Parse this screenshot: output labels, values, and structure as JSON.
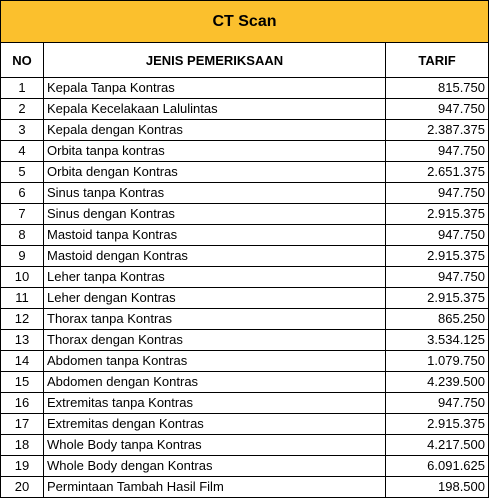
{
  "title": "CT Scan",
  "headers": {
    "no": "NO",
    "name": "JENIS  PEMERIKSAAN",
    "price": "TARIF"
  },
  "rows": [
    {
      "no": "1",
      "name": "Kepala Tanpa Kontras",
      "price": "815.750"
    },
    {
      "no": "2",
      "name": "Kepala Kecelakaan Lalulintas",
      "price": "947.750"
    },
    {
      "no": "3",
      "name": "Kepala dengan Kontras",
      "price": "2.387.375"
    },
    {
      "no": "4",
      "name": "Orbita tanpa kontras",
      "price": "947.750"
    },
    {
      "no": "5",
      "name": "Orbita dengan Kontras",
      "price": "2.651.375"
    },
    {
      "no": "6",
      "name": "Sinus tanpa Kontras",
      "price": "947.750"
    },
    {
      "no": "7",
      "name": "Sinus dengan Kontras",
      "price": "2.915.375"
    },
    {
      "no": "8",
      "name": "Mastoid tanpa Kontras",
      "price": "947.750"
    },
    {
      "no": "9",
      "name": "Mastoid dengan Kontras",
      "price": "2.915.375"
    },
    {
      "no": "10",
      "name": "Leher tanpa Kontras",
      "price": "947.750"
    },
    {
      "no": "11",
      "name": "Leher dengan Kontras",
      "price": "2.915.375"
    },
    {
      "no": "12",
      "name": "Thorax tanpa Kontras",
      "price": "865.250"
    },
    {
      "no": "13",
      "name": "Thorax dengan Kontras",
      "price": "3.534.125"
    },
    {
      "no": "14",
      "name": "Abdomen tanpa Kontras",
      "price": "1.079.750"
    },
    {
      "no": "15",
      "name": "Abdomen dengan Kontras",
      "price": "4.239.500"
    },
    {
      "no": "16",
      "name": "Extremitas tanpa Kontras",
      "price": "947.750"
    },
    {
      "no": "17",
      "name": "Extremitas dengan Kontras",
      "price": "2.915.375"
    },
    {
      "no": "18",
      "name": "Whole Body tanpa Kontras",
      "price": "4.217.500"
    },
    {
      "no": "19",
      "name": "Whole Body dengan Kontras",
      "price": "6.091.625"
    },
    {
      "no": "20",
      "name": "Permintaan Tambah Hasil Film",
      "price": "198.500"
    }
  ],
  "colors": {
    "title_background": "#fbc02d",
    "border": "#000000"
  }
}
